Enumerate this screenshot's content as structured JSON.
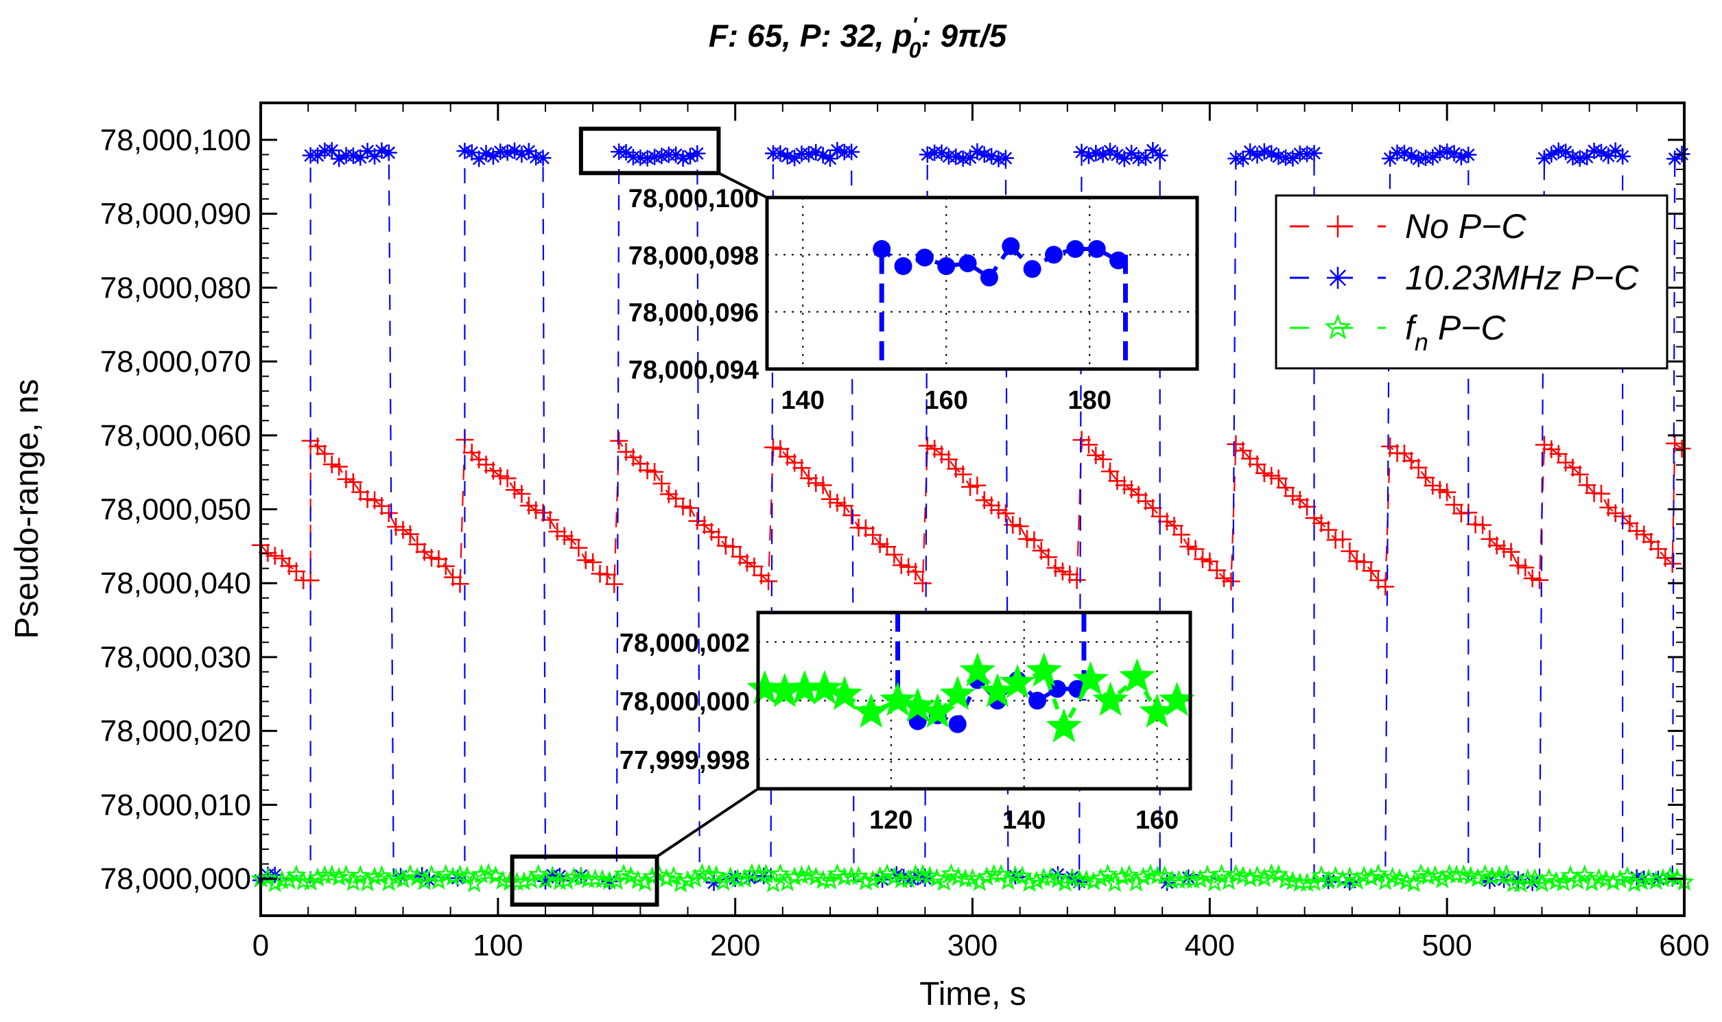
{
  "chart_data": {
    "type": "line",
    "title": "F: 65,  P: 32,  p′₀: 9π/5",
    "title_parts": {
      "f_label": "F: 65,",
      "p_label": "P: 32,",
      "p0_symbol": "p",
      "p0_prime": "′",
      "p0_subscript": "0",
      "p0_value": ": 9π/5"
    },
    "xlabel": "Time,  s",
    "ylabel": "Pseudo-range,  ns",
    "xlim": [
      0,
      600
    ],
    "ylim": [
      77999995,
      78000105
    ],
    "x_ticks": [
      0,
      100,
      200,
      300,
      400,
      500,
      600
    ],
    "x_tick_labels": [
      "0",
      "100",
      "200",
      "300",
      "400",
      "500",
      "600"
    ],
    "y_ticks": [
      78000000,
      78000010,
      78000020,
      78000030,
      78000040,
      78000050,
      78000060,
      78000070,
      78000080,
      78000090,
      78000100
    ],
    "y_tick_labels": [
      "78,000,000",
      "78,000,010",
      "78,000,020",
      "78,000,030",
      "78,000,040",
      "78,000,050",
      "78,000,060",
      "78,000,070",
      "78,000,080",
      "78,000,090",
      "78,000,100"
    ],
    "grid": false,
    "legend_position": "top-right",
    "legend": [
      {
        "label": "No P−C",
        "color": "#ff0000",
        "marker": "plus"
      },
      {
        "label": "10.23MHz P−C",
        "color": "#0000ff",
        "marker": "asterisk"
      },
      {
        "label_main": "f",
        "label_sub": "n",
        "label_rest": " P−C",
        "color": "#00ff00",
        "marker": "star"
      }
    ],
    "cycle_period_s": 65,
    "cycle_starts_s": [
      21,
      86,
      151,
      216,
      281,
      346,
      411,
      476,
      541,
      596
    ],
    "cycle_ends_s": [
      56,
      120,
      185,
      250,
      315,
      379,
      444,
      509,
      574
    ],
    "series": [
      {
        "name": "No P−C",
        "color": "#ff0000",
        "description": "sawtooth",
        "peak_value": 78000059,
        "trough_value": 78000040,
        "initial_value": 78000045
      },
      {
        "name": "10.23MHz P−C",
        "color": "#0000ff",
        "description": "alternates between ~78,000,098 plateau and ~78,000,000",
        "high_value": 78000098,
        "low_value": 78000000
      },
      {
        "name": "f_n P−C",
        "color": "#00ff00",
        "description": "constant near 78,000,000",
        "value": 78000000
      }
    ],
    "inset_top": {
      "xlim": [
        135,
        195
      ],
      "ylim": [
        78000094,
        78000100
      ],
      "x_ticks": [
        140,
        160,
        180
      ],
      "x_tick_labels": [
        "140",
        "160",
        "180"
      ],
      "y_ticks": [
        78000094,
        78000096,
        78000098,
        78000100
      ],
      "y_tick_labels": [
        "78,000,094",
        "78,000,096",
        "78,000,098",
        "78,000,100"
      ],
      "grid": true,
      "points_blue": [
        [
          151,
          78000098.2
        ],
        [
          154,
          78000097.6
        ],
        [
          157,
          78000097.9
        ],
        [
          160,
          78000097.6
        ],
        [
          163,
          78000097.7
        ],
        [
          166,
          78000097.2
        ],
        [
          169,
          78000098.3
        ],
        [
          172,
          78000097.5
        ],
        [
          175,
          78000098.0
        ],
        [
          178,
          78000098.2
        ],
        [
          181,
          78000098.2
        ],
        [
          184,
          78000097.8
        ]
      ],
      "drop_lines_x": [
        151,
        185
      ]
    },
    "inset_bottom": {
      "xlim": [
        100,
        165
      ],
      "ylim": [
        77999997,
        78000003
      ],
      "x_ticks": [
        120,
        140,
        160
      ],
      "x_tick_labels": [
        "120",
        "140",
        "160"
      ],
      "y_ticks": [
        77999998,
        78000000,
        78000002
      ],
      "y_tick_labels": [
        "77,999,998",
        "78,000,000",
        "78,000,002"
      ],
      "grid": true,
      "points_blue": [
        [
          124,
          77999999.3
        ],
        [
          127,
          77999999.5
        ],
        [
          130,
          77999999.2
        ],
        [
          133,
          78000000.7
        ],
        [
          136,
          78000000.0
        ],
        [
          139,
          78000000.7
        ],
        [
          142,
          78000000.0
        ],
        [
          145,
          78000000.4
        ],
        [
          148,
          78000000.4
        ]
      ],
      "points_green": [
        [
          101,
          78000000.4
        ],
        [
          104,
          78000000.3
        ],
        [
          107,
          78000000.4
        ],
        [
          110,
          78000000.4
        ],
        [
          113,
          78000000.2
        ],
        [
          117,
          77999999.6
        ],
        [
          121,
          78000000.0
        ],
        [
          124,
          77999999.8
        ],
        [
          127,
          77999999.6
        ],
        [
          130,
          78000000.2
        ],
        [
          133,
          78000001.0
        ],
        [
          136,
          78000000.3
        ],
        [
          139,
          78000000.6
        ],
        [
          143,
          78000001.0
        ],
        [
          146,
          77999999.1
        ],
        [
          150,
          78000000.7
        ],
        [
          153,
          78000000.0
        ],
        [
          157,
          78000000.8
        ],
        [
          160,
          77999999.6
        ],
        [
          163,
          78000000.0
        ]
      ],
      "drop_lines_x": [
        121,
        149
      ]
    },
    "zoom_box_top": {
      "xrange": [
        135,
        193
      ],
      "yrange": [
        78000095.5,
        78000101.5
      ]
    },
    "zoom_box_bottom": {
      "xrange": [
        106,
        167
      ],
      "yrange": [
        77999996.5,
        78000003.0
      ]
    }
  }
}
